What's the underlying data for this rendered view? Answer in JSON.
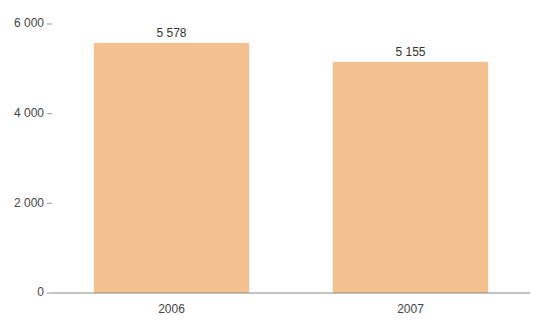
{
  "chart_data": {
    "type": "bar",
    "categories": [
      "2006",
      "2007"
    ],
    "values": [
      5578,
      5155
    ],
    "value_labels": [
      "5 578",
      "5 155"
    ],
    "data_labels": true,
    "color": "#F5C090",
    "ylim": [
      0,
      6000
    ],
    "yticks": [
      0,
      {
        "value": 2000,
        "label": "2 000"
      },
      {
        "value": 4000,
        "label": "4 000"
      },
      {
        "value": 6000,
        "label": "6 000"
      }
    ],
    "grid": false
  }
}
